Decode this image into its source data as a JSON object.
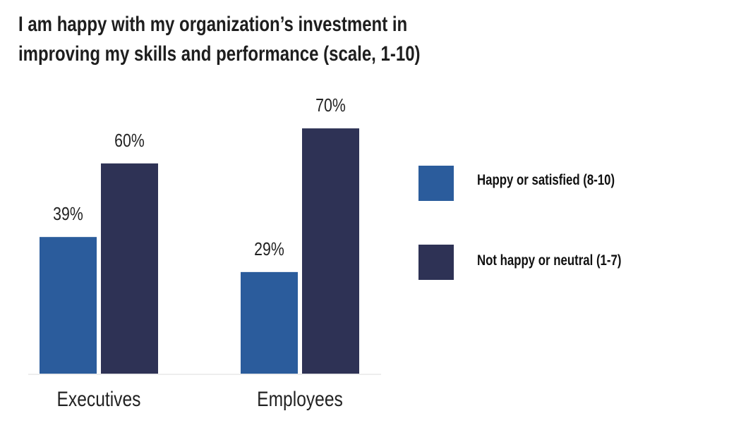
{
  "chart_data": {
    "type": "bar",
    "title": "I am happy with my organization’s investment in improving my skills and performance (scale, 1-10)",
    "title_lines": [
      "I am happy with my organization’s investment in",
      "improving my skills and performance (scale, 1-10)"
    ],
    "categories": [
      "Executives",
      "Employees"
    ],
    "series": [
      {
        "name": "Happy or satisfied (8-10)",
        "color": "#2b5c9c",
        "values": [
          39,
          29
        ],
        "labels": [
          "39%",
          "29%"
        ]
      },
      {
        "name": "Not happy or neutral (1-7)",
        "color": "#2e3255",
        "values": [
          60,
          70
        ],
        "labels": [
          "60%",
          "70%"
        ]
      }
    ],
    "xlabel": "",
    "ylabel": "",
    "ylim": [
      0,
      100
    ],
    "grid": false,
    "legend_position": "right"
  }
}
